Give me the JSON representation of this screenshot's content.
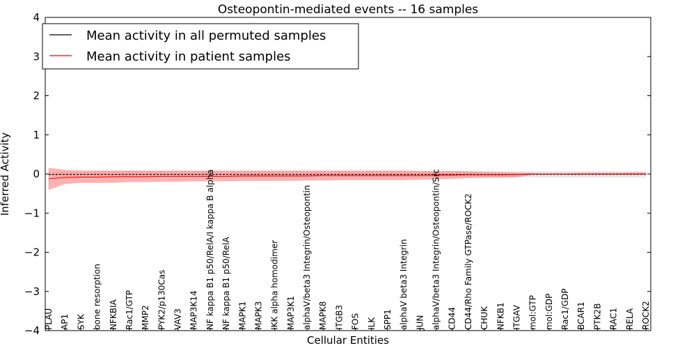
{
  "chart_data": {
    "type": "line",
    "title": "Osteopontin-mediated events -- 16 samples",
    "xlabel": "Cellular Entities",
    "ylabel": "Inferred Activity",
    "ylim": [
      -4,
      4
    ],
    "yticks": [
      -4,
      -3,
      -2,
      -1,
      0,
      1,
      2,
      3,
      4
    ],
    "ytick_labels": [
      "−4",
      "−3",
      "−2",
      "−1",
      "0",
      "1",
      "2",
      "3",
      "4"
    ],
    "categories": [
      "PLAU",
      "AP1",
      "SYK",
      "bone resorption",
      "NFKBIA",
      "Rac1/GTP",
      "MMP2",
      "PYK2/p130Cas",
      "VAV3",
      "MAP3K14",
      "NF kappa B1 p50/RelA/I kappa B alpha",
      "NF kappa B1 p50/RelA",
      "MAPK1",
      "MAPK3",
      "IKK alpha homodimer",
      "MAP3K1",
      "alphaV/beta3 Integrin/Osteopontin",
      "MAPK8",
      "ITGB3",
      "FOS",
      "ILK",
      "SPP1",
      "alphaV beta3 Integrin",
      "JUN",
      "alphaV/beta3 Integrin/Osteopontin/Src",
      "CD44",
      "CD44/Rho Family GTPase/ROCK2",
      "CHUK",
      "NFKB1",
      "ITGAV",
      "mol:GTP",
      "mol:GDP",
      "Rac1/GDP",
      "BCAR1",
      "PTK2B",
      "RAC1",
      "RELA",
      "ROCK2"
    ],
    "series": [
      {
        "name": "Mean activity in all permuted samples",
        "color": "#000000",
        "values": [
          -0.01,
          -0.01,
          -0.01,
          -0.01,
          -0.01,
          -0.01,
          -0.01,
          -0.01,
          -0.01,
          -0.01,
          -0.01,
          -0.01,
          -0.01,
          -0.01,
          -0.01,
          -0.01,
          -0.01,
          -0.01,
          -0.01,
          -0.01,
          -0.01,
          -0.01,
          -0.01,
          -0.01,
          -0.01,
          -0.01,
          -0.01,
          -0.01,
          -0.01,
          -0.01,
          -0.01,
          -0.01,
          -0.01,
          -0.01,
          -0.01,
          -0.01,
          -0.01,
          -0.01
        ],
        "band_lower": [
          -0.05,
          -0.06,
          -0.07,
          -0.07,
          -0.07,
          -0.07,
          -0.07,
          -0.07,
          -0.07,
          -0.07,
          -0.07,
          -0.07,
          -0.07,
          -0.07,
          -0.07,
          -0.07,
          -0.07,
          -0.07,
          -0.07,
          -0.07,
          -0.07,
          -0.07,
          -0.07,
          -0.07,
          -0.07,
          -0.07,
          -0.07,
          -0.07,
          -0.07,
          -0.07,
          -0.08,
          -0.08,
          -0.08,
          -0.08,
          -0.08,
          -0.08,
          -0.08,
          -0.08
        ],
        "band_upper": [
          0.04,
          0.05,
          0.05,
          0.06,
          0.06,
          0.06,
          0.06,
          0.06,
          0.06,
          0.06,
          0.06,
          0.06,
          0.06,
          0.06,
          0.06,
          0.06,
          0.06,
          0.06,
          0.06,
          0.06,
          0.06,
          0.06,
          0.06,
          0.06,
          0.06,
          0.06,
          0.06,
          0.06,
          0.06,
          0.06,
          0.06,
          0.06,
          0.06,
          0.06,
          0.06,
          0.06,
          0.06,
          0.06
        ]
      },
      {
        "name": "Mean activity in patient samples",
        "color": "#ff0000",
        "values": [
          -0.12,
          -0.09,
          -0.08,
          -0.08,
          -0.07,
          -0.07,
          -0.07,
          -0.06,
          -0.06,
          -0.06,
          -0.06,
          -0.06,
          -0.05,
          -0.05,
          -0.05,
          -0.05,
          -0.05,
          -0.04,
          -0.04,
          -0.04,
          -0.04,
          -0.04,
          -0.04,
          -0.04,
          -0.03,
          -0.03,
          -0.02,
          -0.02,
          -0.02,
          -0.01,
          0.0,
          0.0,
          0.0,
          0.0,
          0.0,
          0.0,
          0.0,
          0.0
        ],
        "band_lower": [
          -0.4,
          -0.25,
          -0.22,
          -0.22,
          -0.22,
          -0.2,
          -0.2,
          -0.19,
          -0.19,
          -0.18,
          -0.18,
          -0.18,
          -0.17,
          -0.17,
          -0.17,
          -0.17,
          -0.16,
          -0.16,
          -0.15,
          -0.15,
          -0.15,
          -0.15,
          -0.15,
          -0.14,
          -0.13,
          -0.12,
          -0.1,
          -0.09,
          -0.09,
          -0.08,
          -0.01,
          -0.01,
          -0.01,
          -0.01,
          -0.01,
          -0.01,
          -0.01,
          -0.01
        ],
        "band_upper": [
          0.15,
          0.1,
          0.08,
          0.08,
          0.08,
          0.08,
          0.08,
          0.08,
          0.08,
          0.08,
          0.08,
          0.08,
          0.08,
          0.08,
          0.08,
          0.08,
          0.08,
          0.08,
          0.08,
          0.08,
          0.08,
          0.08,
          0.08,
          0.07,
          0.07,
          0.07,
          0.06,
          0.05,
          0.04,
          0.03,
          0.01,
          0.01,
          0.01,
          0.02,
          0.02,
          0.02,
          0.03,
          0.03
        ]
      }
    ],
    "legend": {
      "location": "upper-left",
      "entries": [
        "Mean activity in all permuted samples",
        "Mean activity in patient samples"
      ]
    },
    "grid": false
  }
}
